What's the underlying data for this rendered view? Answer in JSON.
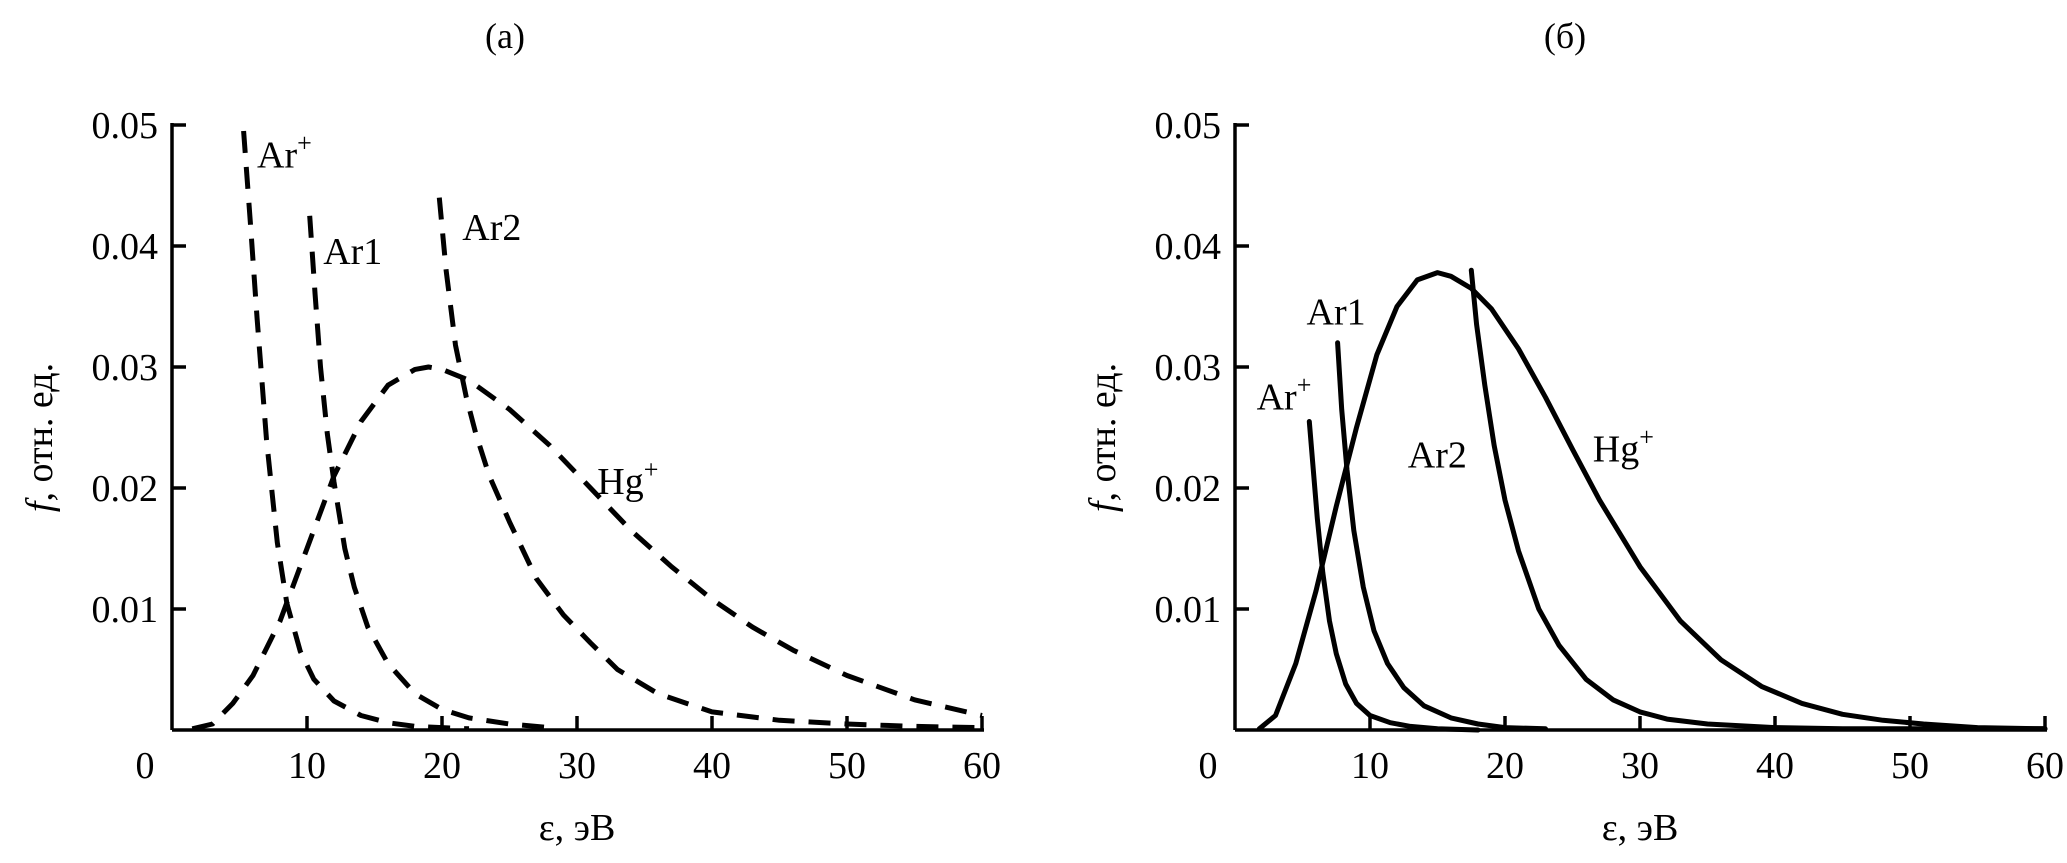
{
  "chart_data": [
    {
      "type": "line",
      "panel_label": "(a)",
      "xlabel": "ε, эВ",
      "ylabel_italic": "f",
      "ylabel_rest": ", отн. ед.",
      "xlim": [
        0,
        60
      ],
      "ylim": [
        0,
        0.05
      ],
      "x_ticks": [
        "0",
        "10",
        "20",
        "30",
        "40",
        "50",
        "60"
      ],
      "y_ticks": [
        "0.01",
        "0.02",
        "0.03",
        "0.04",
        "0.05"
      ],
      "line_style": "dashed",
      "series": [
        {
          "name": "Ar",
          "sup": "+",
          "label_pos": [
            6.3,
            0.0465
          ],
          "x": [
            5.3,
            5.8,
            6.3,
            7.0,
            7.8,
            8.5,
            9.5,
            10.5,
            12,
            14,
            16,
            18,
            20,
            22
          ],
          "y": [
            0.0495,
            0.042,
            0.034,
            0.024,
            0.0155,
            0.0105,
            0.0065,
            0.0042,
            0.0024,
            0.0012,
            0.0006,
            0.0003,
            0.0002,
            0.0001
          ]
        },
        {
          "name": "Ar1",
          "sup": "",
          "label_pos": [
            11.2,
            0.0385
          ],
          "x": [
            10.2,
            10.6,
            11.0,
            11.5,
            12.0,
            12.8,
            13.5,
            14.5,
            16,
            18,
            20,
            22,
            25,
            28
          ],
          "y": [
            0.0425,
            0.036,
            0.03,
            0.0245,
            0.0205,
            0.015,
            0.0118,
            0.0085,
            0.0055,
            0.003,
            0.0017,
            0.001,
            0.0005,
            0.0002
          ]
        },
        {
          "name": "Ar2",
          "sup": "",
          "label_pos": [
            21.5,
            0.0405
          ],
          "x": [
            19.8,
            20.3,
            21.0,
            21.8,
            22.5,
            23.5,
            25,
            27,
            29,
            31,
            33,
            36,
            40,
            45,
            50,
            55,
            60
          ],
          "y": [
            0.044,
            0.038,
            0.0318,
            0.0275,
            0.0245,
            0.021,
            0.0172,
            0.0125,
            0.0095,
            0.0072,
            0.005,
            0.003,
            0.0015,
            0.0008,
            0.0005,
            0.0003,
            0.0002
          ]
        },
        {
          "name": "Hg",
          "sup": "+",
          "label_pos": [
            31.5,
            0.0195
          ],
          "x": [
            1.5,
            3,
            4.5,
            6,
            8,
            10,
            12,
            14,
            16,
            18,
            19,
            20,
            22,
            25,
            28,
            31,
            34,
            37,
            40,
            43,
            46,
            50,
            55,
            60
          ],
          "y": [
            0.0001,
            0.0005,
            0.0022,
            0.0045,
            0.009,
            0.015,
            0.021,
            0.0255,
            0.0285,
            0.0298,
            0.03,
            0.0298,
            0.0289,
            0.0265,
            0.0235,
            0.02,
            0.0165,
            0.0135,
            0.0108,
            0.0085,
            0.0066,
            0.0045,
            0.0025,
            0.0012
          ]
        }
      ]
    },
    {
      "type": "line",
      "panel_label": "(б)",
      "xlabel": "ε, эВ",
      "ylabel_italic": "f",
      "ylabel_rest": ", отн. ед.",
      "xlim": [
        0,
        60
      ],
      "ylim": [
        0,
        0.05
      ],
      "x_ticks": [
        "0",
        "10",
        "20",
        "30",
        "40",
        "50",
        "60"
      ],
      "y_ticks": [
        "0.01",
        "0.02",
        "0.03",
        "0.04",
        "0.05"
      ],
      "line_style": "solid",
      "series": [
        {
          "name": "Ar",
          "sup": "+",
          "label_pos": [
            1.6,
            0.0265
          ],
          "x": [
            5.5,
            5.8,
            6.1,
            6.5,
            7.0,
            7.5,
            8.2,
            9.0,
            10.0,
            11.5,
            13,
            15,
            18
          ],
          "y": [
            0.0255,
            0.0215,
            0.0175,
            0.013,
            0.009,
            0.0063,
            0.0038,
            0.0022,
            0.0012,
            0.0006,
            0.0003,
            0.0001,
            0.0
          ]
        },
        {
          "name": "Ar1",
          "sup": "",
          "label_pos": [
            5.3,
            0.0335
          ],
          "x": [
            7.6,
            7.9,
            8.3,
            8.8,
            9.5,
            10.3,
            11.3,
            12.5,
            14,
            16,
            18,
            20,
            23
          ],
          "y": [
            0.032,
            0.0265,
            0.0215,
            0.0165,
            0.0118,
            0.0082,
            0.0055,
            0.0035,
            0.002,
            0.001,
            0.0005,
            0.0002,
            0.0001
          ]
        },
        {
          "name": "Ar2",
          "sup": "",
          "label_pos": [
            12.8,
            0.0217
          ],
          "x": [
            17.5,
            17.9,
            18.5,
            19.2,
            20,
            21,
            22.5,
            24,
            26,
            28,
            30,
            32,
            35,
            40,
            45,
            50,
            55,
            60
          ],
          "y": [
            0.038,
            0.0335,
            0.0285,
            0.0235,
            0.019,
            0.0148,
            0.01,
            0.007,
            0.0042,
            0.0025,
            0.0015,
            0.0009,
            0.0005,
            0.0002,
            0.0001,
            0.0001,
            0.0001,
            0.0001
          ]
        },
        {
          "name": "Hg",
          "sup": "+",
          "label_pos": [
            26.5,
            0.0222
          ],
          "x": [
            1.8,
            3,
            4.5,
            6,
            7.5,
            9,
            10.5,
            12,
            13.5,
            15,
            16,
            17.5,
            19,
            21,
            23,
            25,
            27,
            30,
            33,
            36,
            39,
            42,
            45,
            48,
            51,
            55,
            60
          ],
          "y": [
            0.0001,
            0.0012,
            0.0055,
            0.0115,
            0.0185,
            0.025,
            0.031,
            0.035,
            0.0372,
            0.0378,
            0.0375,
            0.0365,
            0.0348,
            0.0315,
            0.0275,
            0.0232,
            0.019,
            0.0135,
            0.009,
            0.0058,
            0.0036,
            0.0022,
            0.0013,
            0.0008,
            0.0005,
            0.0002,
            0.0001
          ]
        }
      ]
    }
  ]
}
